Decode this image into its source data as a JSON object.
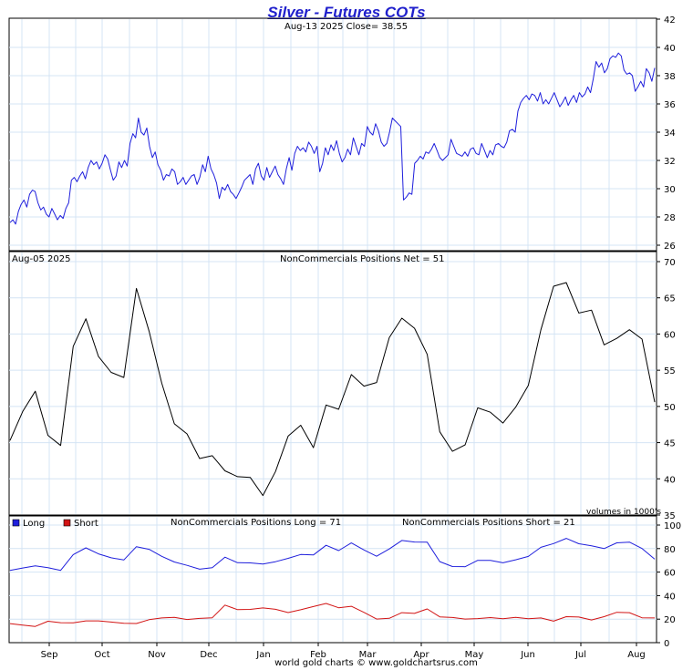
{
  "chart_title": "Silver - Futures COTs",
  "footer": "world gold charts © www.goldchartsrus.com",
  "months": [
    "Sep",
    "Oct",
    "Nov",
    "Dec",
    "Jan",
    "Feb",
    "Mar",
    "Apr",
    "May",
    "Jun",
    "Jul",
    "Aug"
  ],
  "chart_data": [
    {
      "type": "line",
      "header": "Aug-13  2025   Close= 38.55",
      "ylim": [
        26,
        42
      ],
      "yticks": [
        26,
        28,
        30,
        32,
        34,
        36,
        38,
        40,
        42
      ],
      "grid": true,
      "color": "#1f1fdc",
      "series": [
        {
          "values": [
            27.6,
            27.8,
            27.5,
            28.4,
            28.9,
            29.2,
            28.7,
            29.6,
            29.9,
            29.8,
            29.0,
            28.5,
            28.7,
            28.2,
            28.0,
            28.6,
            28.2,
            27.8,
            28.1,
            27.9,
            28.6,
            29.0,
            30.6,
            30.8,
            30.5,
            30.9,
            31.2,
            30.7,
            31.5,
            32.0,
            31.7,
            31.9,
            31.4,
            31.8,
            32.4,
            32.1,
            31.3,
            30.6,
            30.9,
            31.9,
            31.5,
            32.0,
            31.6,
            33.2,
            33.9,
            33.6,
            35.0,
            34.0,
            33.8,
            34.3,
            33.0,
            32.2,
            32.6,
            31.7,
            31.3,
            30.6,
            31.0,
            30.9,
            31.4,
            31.2,
            30.3,
            30.5,
            30.8,
            30.3,
            30.6,
            30.9,
            31.0,
            30.3,
            30.8,
            31.7,
            31.2,
            32.3,
            31.4,
            31.0,
            30.4,
            29.3,
            30.1,
            29.9,
            30.3,
            29.8,
            29.6,
            29.3,
            29.7,
            30.1,
            30.6,
            30.8,
            31.0,
            30.3,
            31.4,
            31.8,
            30.9,
            30.6,
            31.5,
            30.8,
            31.2,
            31.6,
            31.0,
            30.7,
            30.3,
            31.4,
            32.2,
            31.3,
            32.5,
            33.0,
            32.7,
            32.9,
            32.6,
            33.3,
            33.0,
            32.5,
            33.0,
            31.2,
            31.8,
            32.9,
            32.4,
            33.1,
            32.7,
            33.4,
            32.5,
            31.9,
            32.2,
            32.8,
            32.4,
            33.6,
            33.0,
            32.4,
            33.2,
            33.0,
            34.4,
            34.0,
            33.8,
            34.6,
            34.1,
            33.3,
            33.0,
            33.2,
            34.0,
            35.0,
            34.8,
            34.6,
            34.4,
            29.2,
            29.4,
            29.7,
            29.6,
            31.8,
            32.0,
            32.3,
            32.1,
            32.6,
            32.5,
            32.8,
            33.2,
            32.7,
            32.2,
            32.0,
            32.2,
            32.4,
            33.5,
            33.0,
            32.5,
            32.4,
            32.3,
            32.6,
            32.3,
            32.8,
            32.9,
            32.5,
            32.4,
            33.2,
            32.7,
            32.2,
            32.7,
            32.4,
            33.1,
            33.2,
            33.0,
            32.9,
            33.3,
            34.1,
            34.2,
            34.0,
            35.5,
            36.1,
            36.4,
            36.6,
            36.3,
            36.7,
            36.6,
            36.2,
            36.8,
            36.0,
            36.3,
            36.0,
            36.4,
            36.8,
            36.3,
            35.8,
            36.1,
            36.5,
            35.9,
            36.3,
            36.6,
            36.1,
            36.8,
            36.5,
            36.7,
            37.2,
            36.8,
            37.8,
            39.0,
            38.6,
            38.9,
            38.2,
            38.5,
            39.2,
            39.4,
            39.3,
            39.6,
            39.4,
            38.4,
            38.1,
            38.2,
            38.0,
            36.9,
            37.2,
            37.6,
            37.2,
            38.5,
            38.2,
            37.6,
            38.55
          ]
        }
      ]
    },
    {
      "type": "line",
      "header": "Aug-05  2025",
      "annotation": "NonCommercials Positions Net = 51",
      "unit_note": "volumes in 1000's",
      "ylim": [
        35,
        70
      ],
      "yticks": [
        35,
        40,
        45,
        50,
        55,
        60,
        65,
        70
      ],
      "grid": true,
      "color": "#000000",
      "series": [
        {
          "values": [
            45.3,
            49.3,
            52.1,
            46.0,
            44.6,
            58.3,
            62.1,
            56.9,
            54.7,
            54.0,
            66.3,
            60.4,
            53.2,
            47.6,
            46.2,
            42.8,
            43.2,
            41.1,
            40.3,
            40.2,
            37.7,
            41.0,
            45.9,
            47.4,
            44.3,
            50.2,
            49.6,
            54.4,
            52.8,
            53.3,
            59.5,
            62.2,
            60.8,
            57.2,
            46.5,
            43.8,
            44.7,
            49.8,
            49.2,
            47.7,
            49.9,
            52.9,
            60.6,
            66.6,
            67.1,
            62.9,
            63.3,
            58.5,
            59.4,
            60.6,
            59.3,
            50.6
          ]
        }
      ]
    },
    {
      "type": "line",
      "legend": [
        "Long",
        "Short"
      ],
      "annotation_long": "NonCommercials Positions Long = 71",
      "annotation_short": "NonCommercials Positions Short = 21",
      "ylim": [
        0,
        100
      ],
      "yticks": [
        0,
        20,
        40,
        60,
        80,
        100
      ],
      "grid": true,
      "series": [
        {
          "name": "Long",
          "color": "#1f1fdc",
          "values": [
            61.5,
            63.5,
            65.3,
            63.8,
            61.5,
            74.9,
            80.6,
            75.5,
            72.2,
            70.3,
            81.6,
            79.4,
            73.4,
            68.6,
            65.7,
            62.5,
            63.8,
            72.7,
            68.0,
            67.8,
            66.8,
            68.8,
            71.7,
            75.0,
            74.6,
            82.8,
            78.3,
            84.8,
            78.8,
            73.5,
            79.7,
            86.9,
            85.6,
            85.4,
            68.9,
            64.7,
            64.6,
            70.0,
            70.0,
            67.9,
            70.5,
            73.3,
            81.1,
            84.3,
            88.7,
            84.1,
            82.3,
            80.0,
            84.9,
            85.5,
            80.1,
            71.0
          ]
        },
        {
          "name": "Short",
          "color": "#d21414",
          "values": [
            16.2,
            14.9,
            13.8,
            18.2,
            17.0,
            16.8,
            18.5,
            18.5,
            17.5,
            16.4,
            16.3,
            19.5,
            21.0,
            21.5,
            19.7,
            20.6,
            21.2,
            31.9,
            28.1,
            28.3,
            29.5,
            28.4,
            25.6,
            28.0,
            30.7,
            33.3,
            29.7,
            30.9,
            25.7,
            20.1,
            20.7,
            25.5,
            24.9,
            28.7,
            21.9,
            21.4,
            20.1,
            20.5,
            21.3,
            20.4,
            21.5,
            20.3,
            21.0,
            18.3,
            22.1,
            21.8,
            19.3,
            22.1,
            25.8,
            25.5,
            21.2,
            21.0
          ]
        }
      ]
    }
  ]
}
